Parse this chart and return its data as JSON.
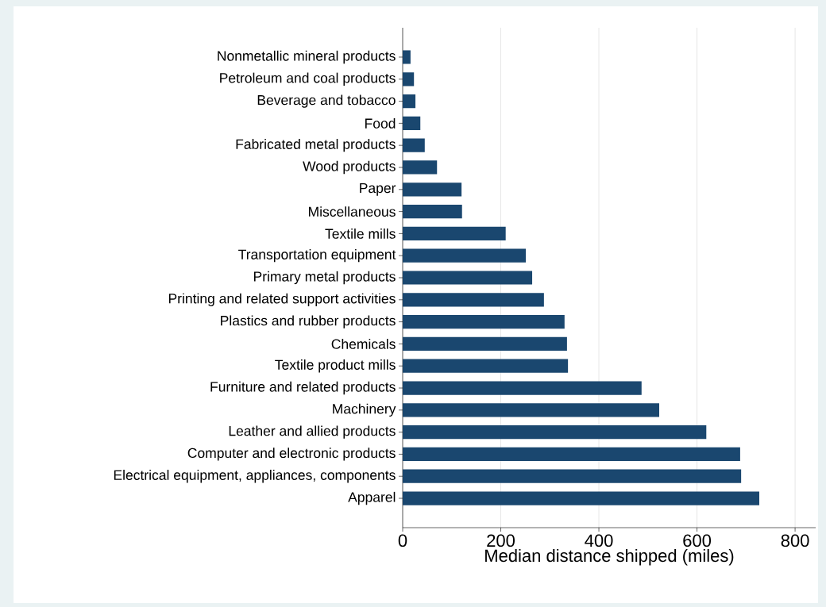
{
  "chart_data": {
    "type": "bar",
    "orientation": "horizontal",
    "categories": [
      "Nonmetallic mineral products",
      "Petroleum and coal products",
      "Beverage and tobacco",
      "Food",
      "Fabricated metal products",
      "Wood products",
      "Paper",
      "Miscellaneous",
      "Textile mills",
      "Transportation equipment",
      "Primary metal products",
      "Printing and related support activities",
      "Plastics and rubber products",
      "Chemicals",
      "Textile product mills",
      "Furniture and related products",
      "Machinery",
      "Leather and allied products",
      "Computer and electronic products",
      "Electrical equipment, appliances, components",
      "Apparel"
    ],
    "values": [
      16,
      23,
      26,
      36,
      45,
      70,
      120,
      121,
      210,
      251,
      264,
      288,
      330,
      335,
      337,
      487,
      523,
      619,
      688,
      690,
      727
    ],
    "color": "#1a476f",
    "xlabel": "Median distance shipped (miles)",
    "xlim": [
      0,
      842
    ],
    "xticks": [
      0,
      200,
      400,
      600,
      800
    ],
    "grid": "x"
  }
}
